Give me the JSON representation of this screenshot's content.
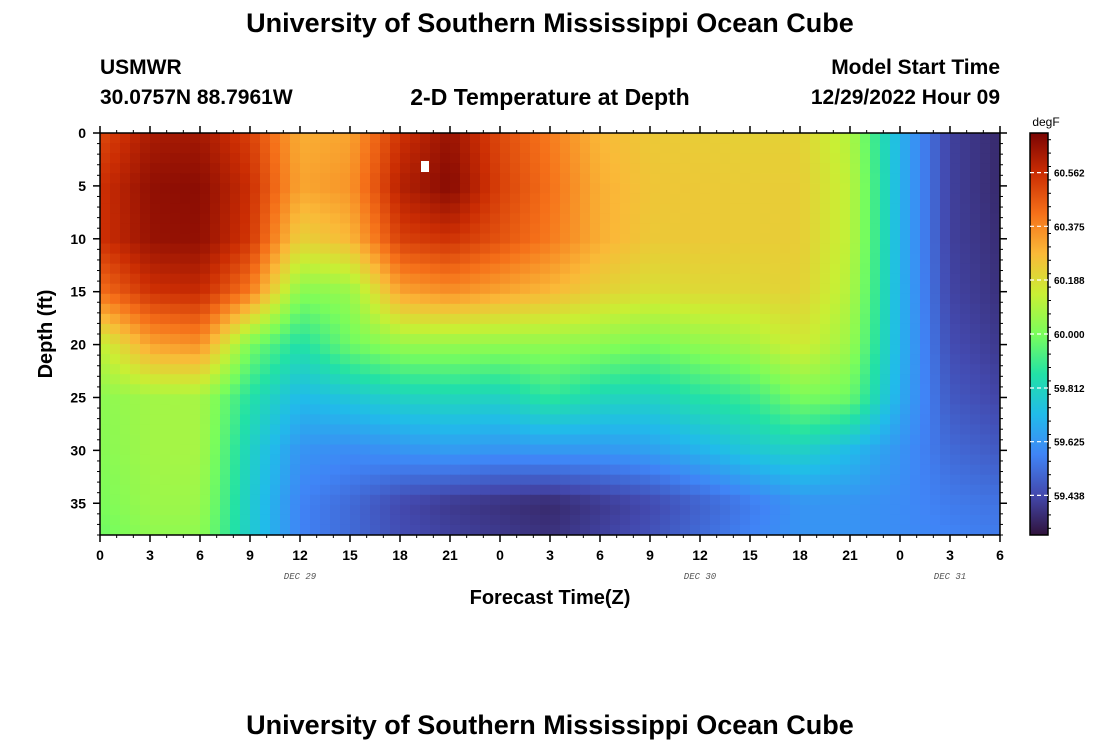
{
  "header": {
    "title": "University of Southern Mississippi Ocean Cube",
    "station": "USMWR",
    "coords": "30.0757N  88.7961W",
    "subtitle": "2-D Temperature at Depth",
    "model_start_label": "Model Start Time",
    "model_start_value": "12/29/2022 Hour 09",
    "footer_title": "University of Southern Mississippi Ocean Cube"
  },
  "chart_data": {
    "type": "heatmap",
    "title": "2-D Temperature at Depth",
    "xlabel": "Forecast Time(Z)",
    "ylabel": "Depth (ft)",
    "x_tick_labels": [
      "0",
      "3",
      "6",
      "9",
      "12",
      "15",
      "18",
      "21",
      "0",
      "3",
      "6",
      "9",
      "12",
      "15",
      "18",
      "21",
      "0",
      "3",
      "6"
    ],
    "date_labels": [
      {
        "label": "DEC 29",
        "at_hour": 12
      },
      {
        "label": "DEC 30",
        "at_hour": 36
      },
      {
        "label": "DEC 31",
        "at_hour": 51
      }
    ],
    "x_range_hours": [
      0,
      54
    ],
    "y_range_ft": [
      0,
      38
    ],
    "y_tick_labels": [
      "0",
      "5",
      "10",
      "15",
      "20",
      "25",
      "30",
      "35"
    ],
    "y_tick_values": [
      0,
      5,
      10,
      15,
      20,
      25,
      30,
      35
    ],
    "colorbar": {
      "unit": "degF",
      "range": [
        59.3,
        60.7
      ],
      "tick_labels": [
        "60.562",
        "60.375",
        "60.188",
        "60.000",
        "59.812",
        "59.625",
        "59.438"
      ],
      "tick_values": [
        60.562,
        60.375,
        60.188,
        60.0,
        59.812,
        59.625,
        59.438
      ]
    },
    "temperature_grid": {
      "x_hours": [
        0,
        3,
        6,
        9,
        12,
        15,
        18,
        21,
        24,
        27,
        30,
        33,
        36,
        39,
        42,
        45,
        48,
        51,
        54
      ],
      "depth_ft": [
        0,
        5,
        10,
        15,
        20,
        25,
        30,
        35,
        38
      ],
      "values_degF": [
        [
          60.5,
          60.62,
          60.63,
          60.52,
          60.3,
          60.32,
          60.55,
          60.65,
          60.5,
          60.4,
          60.28,
          60.24,
          60.23,
          60.22,
          60.22,
          60.1,
          59.7,
          59.42,
          59.36
        ],
        [
          60.55,
          60.66,
          60.67,
          60.56,
          60.32,
          60.35,
          60.6,
          60.68,
          60.52,
          60.42,
          60.3,
          60.25,
          60.24,
          60.23,
          60.23,
          60.12,
          59.7,
          59.42,
          59.36
        ],
        [
          60.55,
          60.65,
          60.66,
          60.54,
          60.22,
          60.28,
          60.52,
          60.55,
          60.48,
          60.4,
          60.3,
          60.24,
          60.24,
          60.23,
          60.23,
          60.12,
          59.7,
          59.42,
          59.37
        ],
        [
          60.42,
          60.55,
          60.57,
          60.4,
          60.02,
          60.05,
          60.32,
          60.36,
          60.32,
          60.28,
          60.22,
          60.18,
          60.2,
          60.2,
          60.22,
          60.1,
          59.7,
          59.43,
          59.38
        ],
        [
          60.12,
          60.32,
          60.36,
          60.0,
          59.85,
          59.98,
          60.05,
          60.05,
          60.04,
          60.04,
          60.03,
          60.0,
          60.04,
          60.08,
          60.16,
          60.06,
          59.7,
          59.45,
          59.4
        ],
        [
          60.03,
          60.07,
          60.08,
          59.86,
          59.72,
          59.76,
          59.8,
          59.82,
          59.8,
          59.88,
          59.82,
          59.8,
          59.86,
          59.9,
          60.0,
          59.98,
          59.68,
          59.48,
          59.43
        ],
        [
          60.02,
          60.07,
          60.08,
          59.8,
          59.62,
          59.6,
          59.62,
          59.64,
          59.62,
          59.63,
          59.63,
          59.65,
          59.7,
          59.76,
          59.8,
          59.72,
          59.62,
          59.52,
          59.48
        ],
        [
          60.0,
          60.06,
          60.06,
          59.78,
          59.58,
          59.52,
          59.44,
          59.4,
          59.38,
          59.36,
          59.4,
          59.44,
          59.5,
          59.56,
          59.62,
          59.62,
          59.6,
          59.56,
          59.54
        ],
        [
          59.98,
          60.04,
          60.04,
          59.78,
          59.58,
          59.52,
          59.45,
          59.42,
          59.4,
          59.38,
          59.42,
          59.46,
          59.52,
          59.58,
          59.62,
          59.62,
          59.6,
          59.58,
          59.56
        ]
      ]
    },
    "grid": false
  }
}
